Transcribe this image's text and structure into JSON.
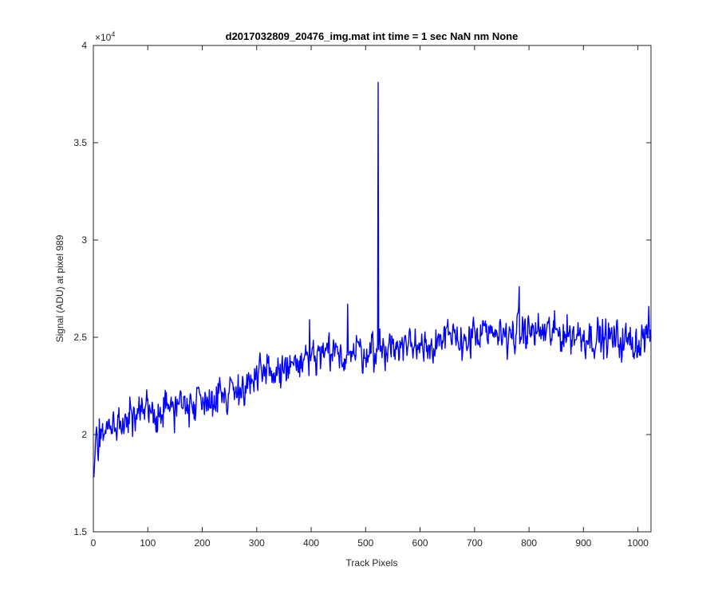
{
  "chart_data": {
    "type": "line",
    "title": "d2017032809_20476_img.mat int time = 1 sec  NaN nm None",
    "xlabel": "Track Pixels",
    "ylabel": "Signal (ADU) at pixel 989",
    "y_multiplier_label": "×10",
    "y_multiplier_exponent": "4",
    "xlim": [
      0,
      1024
    ],
    "ylim": [
      15000,
      40000
    ],
    "xticks": [
      0,
      100,
      200,
      300,
      400,
      500,
      600,
      700,
      800,
      900,
      1000
    ],
    "xtick_labels": [
      "0",
      "100",
      "200",
      "300",
      "400",
      "500",
      "600",
      "700",
      "800",
      "900",
      "1000"
    ],
    "yticks": [
      15000,
      20000,
      25000,
      30000,
      35000,
      40000
    ],
    "ytick_labels": [
      "1.5",
      "2",
      "2.5",
      "3",
      "3.5",
      "4"
    ],
    "grid": false,
    "series": [
      {
        "color": "#0000ff",
        "n_points": 1024,
        "x_start": 1,
        "x_step": 1,
        "trend_points": [
          [
            1,
            17800
          ],
          [
            5,
            20000
          ],
          [
            60,
            20700
          ],
          [
            150,
            21500
          ],
          [
            250,
            22200
          ],
          [
            330,
            23200
          ],
          [
            420,
            24000
          ],
          [
            520,
            24400
          ],
          [
            600,
            24700
          ],
          [
            700,
            25000
          ],
          [
            800,
            25300
          ],
          [
            900,
            25100
          ],
          [
            1000,
            24700
          ],
          [
            1024,
            25400
          ]
        ],
        "noise_amplitude": 700,
        "spikes": [
          [
            523,
            38100
          ],
          [
            467,
            26700
          ],
          [
            782,
            27600
          ],
          [
            397,
            25900
          ]
        ],
        "points": []
      }
    ]
  }
}
